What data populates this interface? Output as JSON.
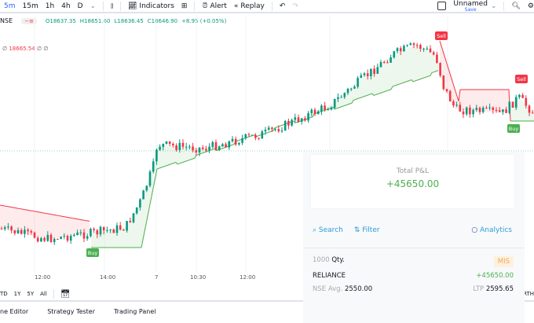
{
  "toolbar": {
    "intervals": [
      "5m",
      "15m",
      "1h",
      "4h",
      "D"
    ],
    "active_interval": "5m",
    "indicators": "Indicators",
    "alert": "Alert",
    "replay": "Replay",
    "layout_name": "Unnamed",
    "save": "Save"
  },
  "legend": {
    "symbol": "NSE",
    "open": "O18637.35",
    "high": "H18651.60",
    "low": "L18636.45",
    "close": "C18646.90",
    "change": "+8.95 (+0.05%)",
    "indicator_value": "18665.54",
    "na": "∅"
  },
  "chart": {
    "up_color": "#089981",
    "down_color": "#f23645",
    "signals": [
      {
        "label": "Buy"
      },
      {
        "label": "Sell"
      },
      {
        "label": "Sell"
      },
      {
        "label": "Buy"
      }
    ]
  },
  "time_axis": [
    "12:00",
    "14:00",
    "7",
    "10:30",
    "12:00"
  ],
  "ranges": [
    "TD",
    "1Y",
    "5Y",
    "All"
  ],
  "bottom_tabs": [
    "ne Editor",
    "Strategy Tester",
    "Trading Panel"
  ],
  "right_cut_label": "RTH",
  "panel": {
    "pnl_title": "Total P&L",
    "pnl_value": "+45650.00",
    "search": "Search",
    "filter": "Filter",
    "analytics": "Analytics",
    "position": {
      "qty": "1000",
      "qty_label": "Qty.",
      "product": "MIS",
      "symbol": "RELIANCE",
      "pnl": "+45650.00",
      "exchange": "NSE",
      "avg_label": "Avg.",
      "avg": "2550.00",
      "ltp_label": "LTP",
      "ltp": "2595.65"
    }
  }
}
